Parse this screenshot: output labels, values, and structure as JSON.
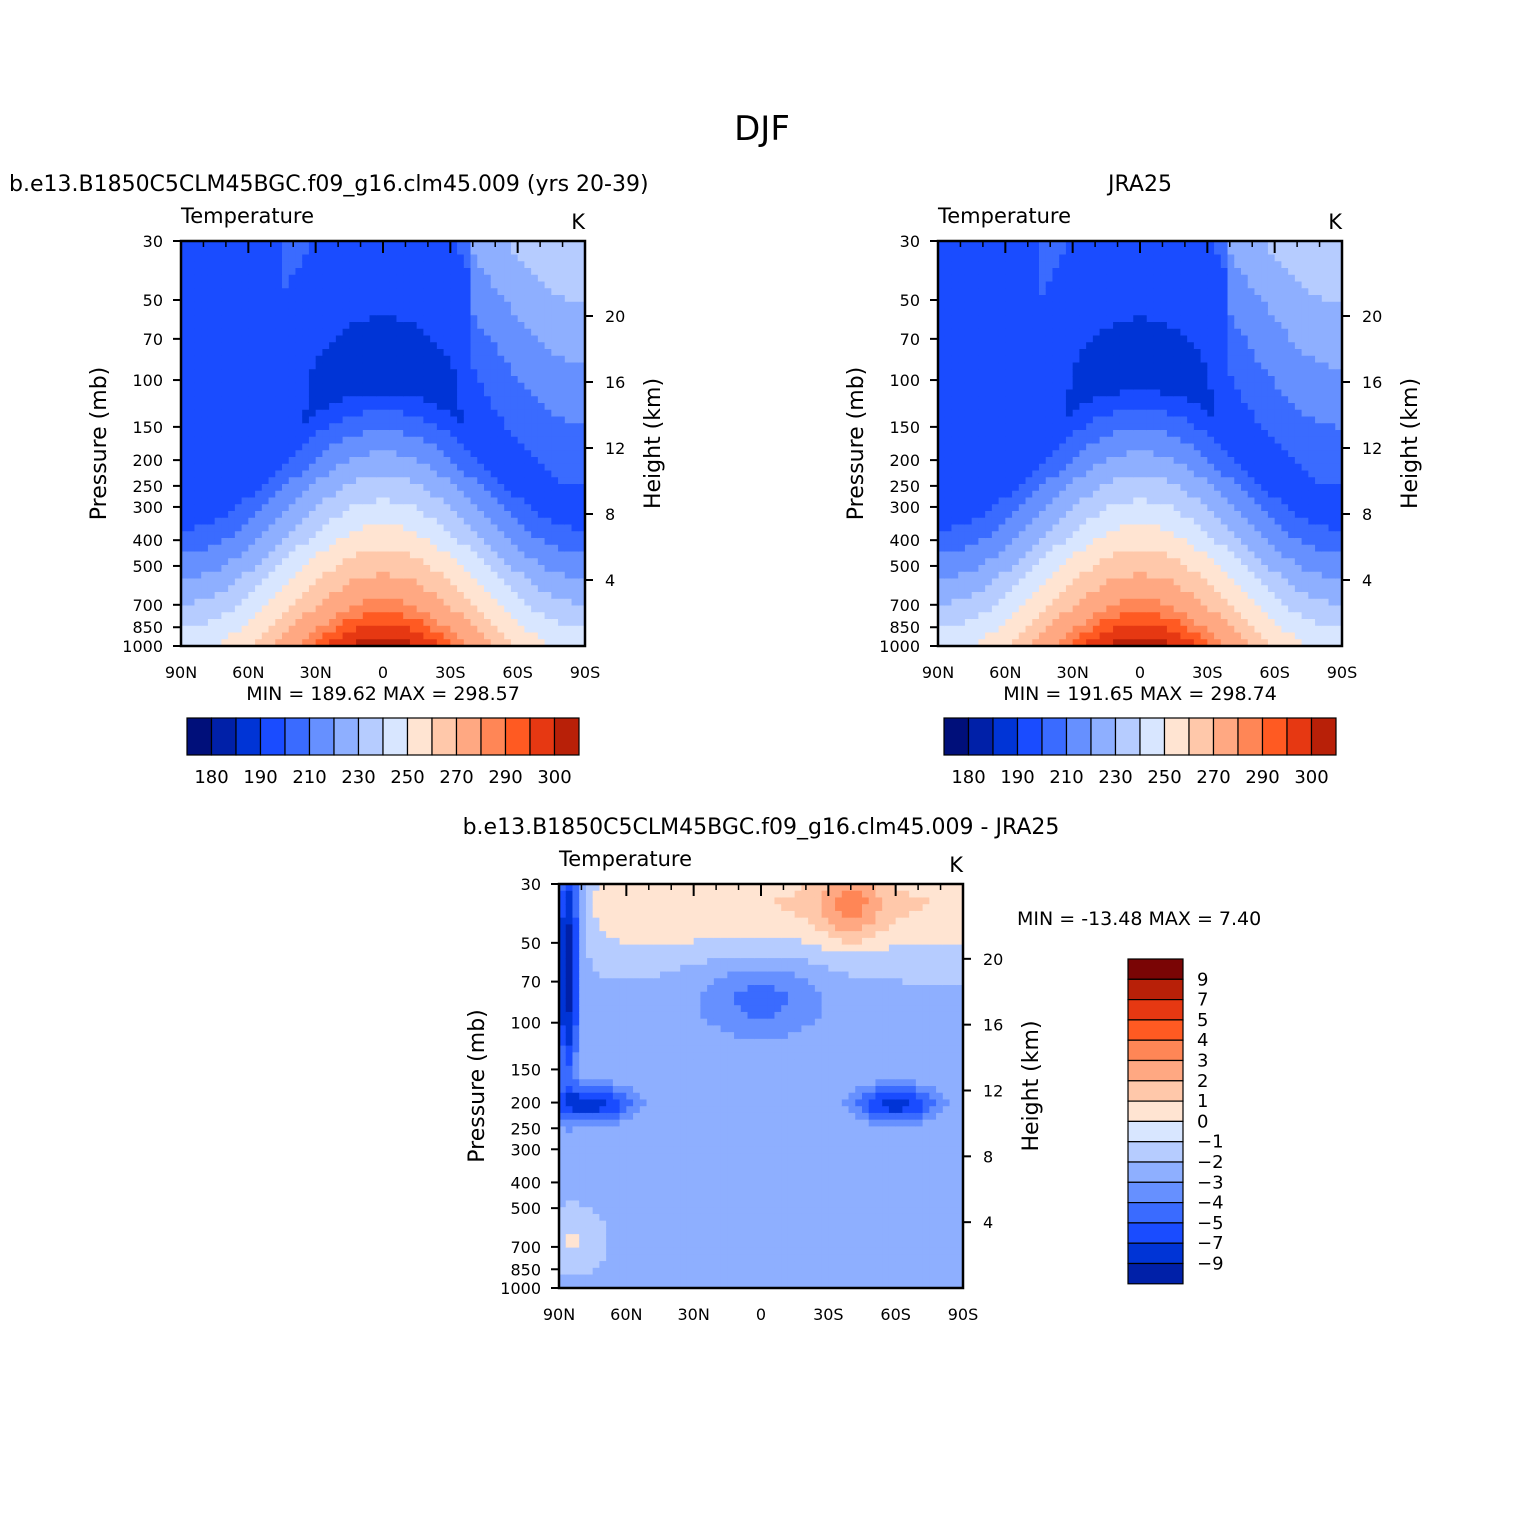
{
  "figure": {
    "title": "DJF"
  },
  "chart_data": [
    {
      "type": "heatmap",
      "panel": "model",
      "title": "b.e13.B1850C5CLM45BGC.f09_g16.clm45.009 (yrs 20-39)",
      "variable": "Temperature",
      "units": "K",
      "xlabel": "",
      "ylabel": "Pressure (mb)",
      "ylabel_right": "Height (km)",
      "x_ticks": [
        "90N",
        "60N",
        "30N",
        "0",
        "30S",
        "60S",
        "90S"
      ],
      "y_ticks": [
        "30",
        "50",
        "70",
        "100",
        "150",
        "200",
        "250",
        "300",
        "400",
        "500",
        "700",
        "850",
        "1000"
      ],
      "y_ticks_right": [
        "20",
        "16",
        "12",
        "8",
        "4"
      ],
      "stats": "MIN = 189.62   MAX = 298.57",
      "colorbar_labels": [
        "180",
        "190",
        "210",
        "230",
        "250",
        "270",
        "290",
        "300"
      ],
      "approx_field": {
        "tropopause_min_K": 190,
        "surface_equator_K": 298,
        "polar_strat_K": 235
      }
    },
    {
      "type": "heatmap",
      "panel": "obs",
      "title": "JRA25",
      "variable": "Temperature",
      "units": "K",
      "xlabel": "",
      "ylabel": "Pressure (mb)",
      "ylabel_right": "Height (km)",
      "x_ticks": [
        "90N",
        "60N",
        "30N",
        "0",
        "30S",
        "60S",
        "90S"
      ],
      "y_ticks": [
        "30",
        "50",
        "70",
        "100",
        "150",
        "200",
        "250",
        "300",
        "400",
        "500",
        "700",
        "850",
        "1000"
      ],
      "y_ticks_right": [
        "20",
        "16",
        "12",
        "8",
        "4"
      ],
      "stats": "MIN = 191.65   MAX = 298.74",
      "colorbar_labels": [
        "180",
        "190",
        "210",
        "230",
        "250",
        "270",
        "290",
        "300"
      ],
      "approx_field": {
        "tropopause_min_K": 192,
        "surface_equator_K": 298,
        "polar_strat_K": 238
      }
    },
    {
      "type": "heatmap",
      "panel": "difference",
      "title": "b.e13.B1850C5CLM45BGC.f09_g16.clm45.009 - JRA25",
      "variable": "Temperature",
      "units": "K",
      "xlabel": "",
      "ylabel": "Pressure (mb)",
      "ylabel_right": "Height (km)",
      "x_ticks": [
        "90N",
        "60N",
        "30N",
        "0",
        "30S",
        "60S",
        "90S"
      ],
      "y_ticks": [
        "30",
        "50",
        "70",
        "100",
        "150",
        "200",
        "250",
        "300",
        "400",
        "500",
        "700",
        "850",
        "1000"
      ],
      "y_ticks_right": [
        "20",
        "16",
        "12",
        "8",
        "4"
      ],
      "stats": "MIN = -13.48   MAX =    7.40",
      "colorbar_labels": [
        "9",
        "7",
        "5",
        "4",
        "3",
        "2",
        "1",
        "0",
        "−1",
        "−2",
        "−3",
        "−4",
        "−5",
        "−7",
        "−9"
      ]
    }
  ],
  "colors": {
    "scale": [
      "#000f7a",
      "#0020a8",
      "#0034d6",
      "#1a4cff",
      "#3a6bff",
      "#6690ff",
      "#8eafff",
      "#b6ccff",
      "#d8e6ff",
      "#ffe4d2",
      "#ffc8aa",
      "#ffa882",
      "#ff8656",
      "#ff5a22",
      "#e63812",
      "#b82008",
      "#7a0505"
    ],
    "frame": "#000000"
  }
}
